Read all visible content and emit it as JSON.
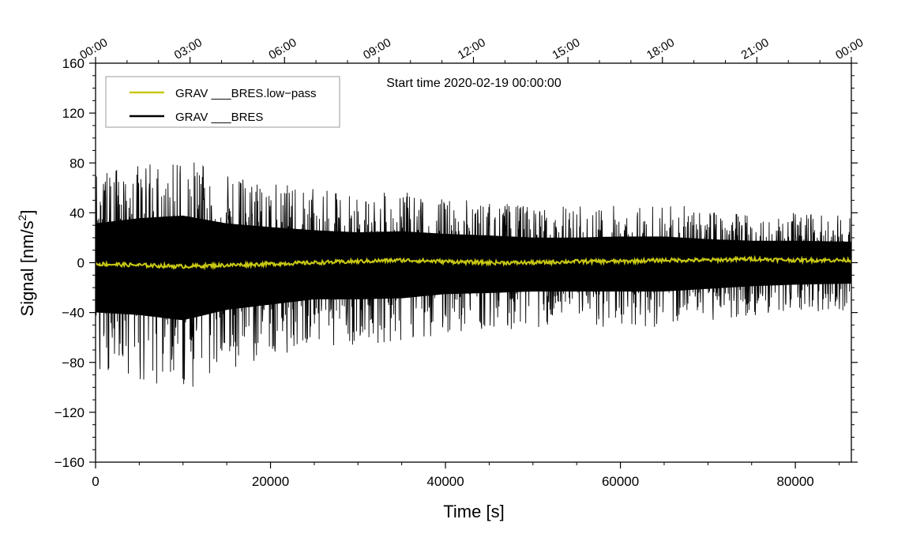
{
  "chart_data": {
    "type": "line",
    "title": "",
    "annotation": "Start time 2020-02-19 00:00:00",
    "xlabel": "Time [s]",
    "ylabel": "Signal [nm/s",
    "ylabel_sup": "2",
    "ylabel_end": "]",
    "xlim": [
      0,
      86400
    ],
    "ylim": [
      -160,
      160
    ],
    "x_ticks": [
      0,
      20000,
      40000,
      60000,
      80000
    ],
    "x_tick_labels": [
      "0",
      "20000",
      "40000",
      "60000",
      "80000"
    ],
    "y_ticks": [
      160,
      120,
      80,
      40,
      0,
      -40,
      -80,
      -120,
      -160
    ],
    "y_tick_labels": [
      "160",
      "120",
      "80",
      "40",
      "0",
      "−40",
      "−80",
      "−120",
      "−160"
    ],
    "top_axis": {
      "ticks_seconds": [
        0,
        10800,
        21600,
        32400,
        43200,
        54000,
        64800,
        75600,
        86400
      ],
      "labels": [
        "00:00",
        "03:00",
        "06:00",
        "09:00",
        "12:00",
        "15:00",
        "18:00",
        "21:00",
        "00:00"
      ]
    },
    "legend": {
      "placement": "top-left",
      "entries": [
        {
          "name": "GRAV ___BRES.low−pass",
          "color": "#c8c814"
        },
        {
          "name": "GRAV ___BRES",
          "color": "#000000"
        }
      ]
    },
    "series": [
      {
        "name": "GRAV ___BRES",
        "color": "#000000",
        "envelope_x": [
          0,
          5000,
          10000,
          15000,
          20000,
          25000,
          30000,
          35000,
          40000,
          45000,
          50000,
          55000,
          60000,
          65000,
          70000,
          75000,
          80000,
          86400
        ],
        "envelope_upper": [
          75,
          85,
          90,
          75,
          68,
          62,
          58,
          60,
          55,
          52,
          48,
          48,
          50,
          50,
          45,
          42,
          42,
          40
        ],
        "envelope_lower": [
          -95,
          -100,
          -110,
          -90,
          -80,
          -70,
          -70,
          -68,
          -60,
          -58,
          -55,
          -55,
          -55,
          -55,
          -50,
          -45,
          -42,
          -40
        ]
      },
      {
        "name": "GRAV ___BRES.low−pass",
        "color": "#c8c814",
        "x": [
          0,
          5000,
          10000,
          15000,
          20000,
          25000,
          30000,
          35000,
          40000,
          45000,
          50000,
          55000,
          60000,
          65000,
          70000,
          75000,
          80000,
          86400
        ],
        "y": [
          -1,
          -2,
          -3,
          -2,
          -1,
          0,
          1,
          2,
          1,
          0,
          0,
          1,
          1,
          2,
          2,
          3,
          2,
          2
        ]
      }
    ]
  }
}
